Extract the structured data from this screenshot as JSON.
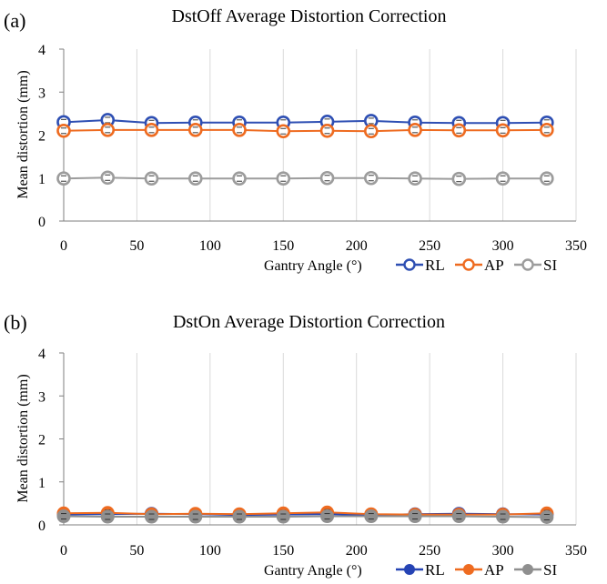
{
  "chart_data": [
    {
      "type": "line",
      "panel_label": "(a)",
      "title": "DstOff Average Distortion Correction",
      "xlabel": "Gantry Angle (°)",
      "ylabel": "Mean distortion (mm)",
      "xlim": [
        0,
        350
      ],
      "ylim": [
        0,
        4
      ],
      "xticks": [
        "0",
        "50",
        "100",
        "150",
        "200",
        "250",
        "300",
        "350"
      ],
      "yticks": [
        "0",
        "1",
        "2",
        "3",
        "4"
      ],
      "grid": "vertical",
      "legend": "bottom-right",
      "marker_style": "open",
      "x": [
        0,
        30,
        60,
        90,
        120,
        150,
        180,
        210,
        240,
        270,
        300,
        330
      ],
      "series": [
        {
          "name": "RL",
          "color": "#2e4fb3",
          "values": [
            2.3,
            2.35,
            2.28,
            2.29,
            2.29,
            2.29,
            2.31,
            2.33,
            2.29,
            2.28,
            2.28,
            2.29
          ]
        },
        {
          "name": "AP",
          "color": "#ee6b20",
          "values": [
            2.1,
            2.12,
            2.12,
            2.12,
            2.12,
            2.09,
            2.1,
            2.09,
            2.12,
            2.11,
            2.11,
            2.12
          ]
        },
        {
          "name": "SI",
          "color": "#9c9c9c",
          "values": [
            0.99,
            1.01,
            0.99,
            0.99,
            0.99,
            0.99,
            1.0,
            1.0,
            0.99,
            0.98,
            0.99,
            0.99
          ]
        }
      ]
    },
    {
      "type": "line",
      "panel_label": "(b)",
      "title": "DstOn Average Distortion Correction",
      "xlabel": "Gantry Angle (°)",
      "ylabel": "Mean distortion (mm)",
      "xlim": [
        0,
        350
      ],
      "ylim": [
        0,
        4
      ],
      "xticks": [
        "0",
        "50",
        "100",
        "150",
        "200",
        "250",
        "300",
        "350"
      ],
      "yticks": [
        "0",
        "1",
        "2",
        "3",
        "4"
      ],
      "grid": "vertical",
      "legend": "bottom-right",
      "marker_style": "filled",
      "x": [
        0,
        30,
        60,
        90,
        120,
        150,
        180,
        210,
        240,
        270,
        300,
        330
      ],
      "series": [
        {
          "name": "RL",
          "color": "#2543b4",
          "values": [
            0.24,
            0.25,
            0.26,
            0.25,
            0.23,
            0.24,
            0.25,
            0.23,
            0.25,
            0.26,
            0.25,
            0.24
          ]
        },
        {
          "name": "AP",
          "color": "#ee6b20",
          "values": [
            0.27,
            0.28,
            0.25,
            0.26,
            0.25,
            0.27,
            0.29,
            0.25,
            0.24,
            0.24,
            0.24,
            0.27
          ]
        },
        {
          "name": "SI",
          "color": "#8f8f8f",
          "values": [
            0.2,
            0.19,
            0.19,
            0.19,
            0.19,
            0.19,
            0.2,
            0.2,
            0.2,
            0.2,
            0.19,
            0.18
          ]
        }
      ]
    }
  ]
}
